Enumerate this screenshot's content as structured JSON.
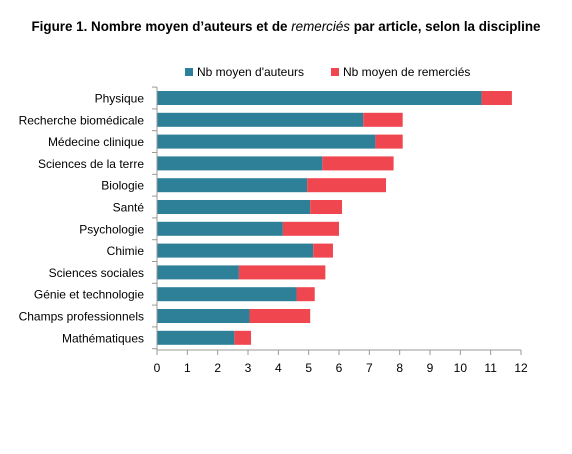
{
  "title": {
    "prefix": "Figure 1. Nombre moyen d’auteurs et de ",
    "emphasis": "remerciés",
    "suffix": " par article, selon la discipline"
  },
  "colors": {
    "authors": "#2e8099",
    "acknowledged": "#f0464f",
    "axis": "#9a9a9a"
  },
  "chart_data": {
    "type": "bar",
    "orientation": "horizontal",
    "stacked": true,
    "categories": [
      "Physique",
      "Recherche biomédicale",
      "Médecine clinique",
      "Sciences de la terre",
      "Biologie",
      "Santé",
      "Psychologie",
      "Chimie",
      "Sciences sociales",
      "Génie et technologie",
      "Champs professionnels",
      "Mathématiques"
    ],
    "series": [
      {
        "name": "Nb moyen d'auteurs",
        "values": [
          10.7,
          6.8,
          7.2,
          5.45,
          4.95,
          5.05,
          4.15,
          5.15,
          2.7,
          4.6,
          3.05,
          2.55
        ]
      },
      {
        "name": "Nb moyen de remerciés",
        "values": [
          1.0,
          1.3,
          0.9,
          2.35,
          2.6,
          1.05,
          1.85,
          0.65,
          2.85,
          0.6,
          2.0,
          0.55
        ]
      }
    ],
    "xlim": [
      0,
      12
    ],
    "xticks": [
      0,
      1,
      2,
      3,
      4,
      5,
      6,
      7,
      8,
      9,
      10,
      11,
      12
    ],
    "legend_position": "top",
    "grid": false
  }
}
